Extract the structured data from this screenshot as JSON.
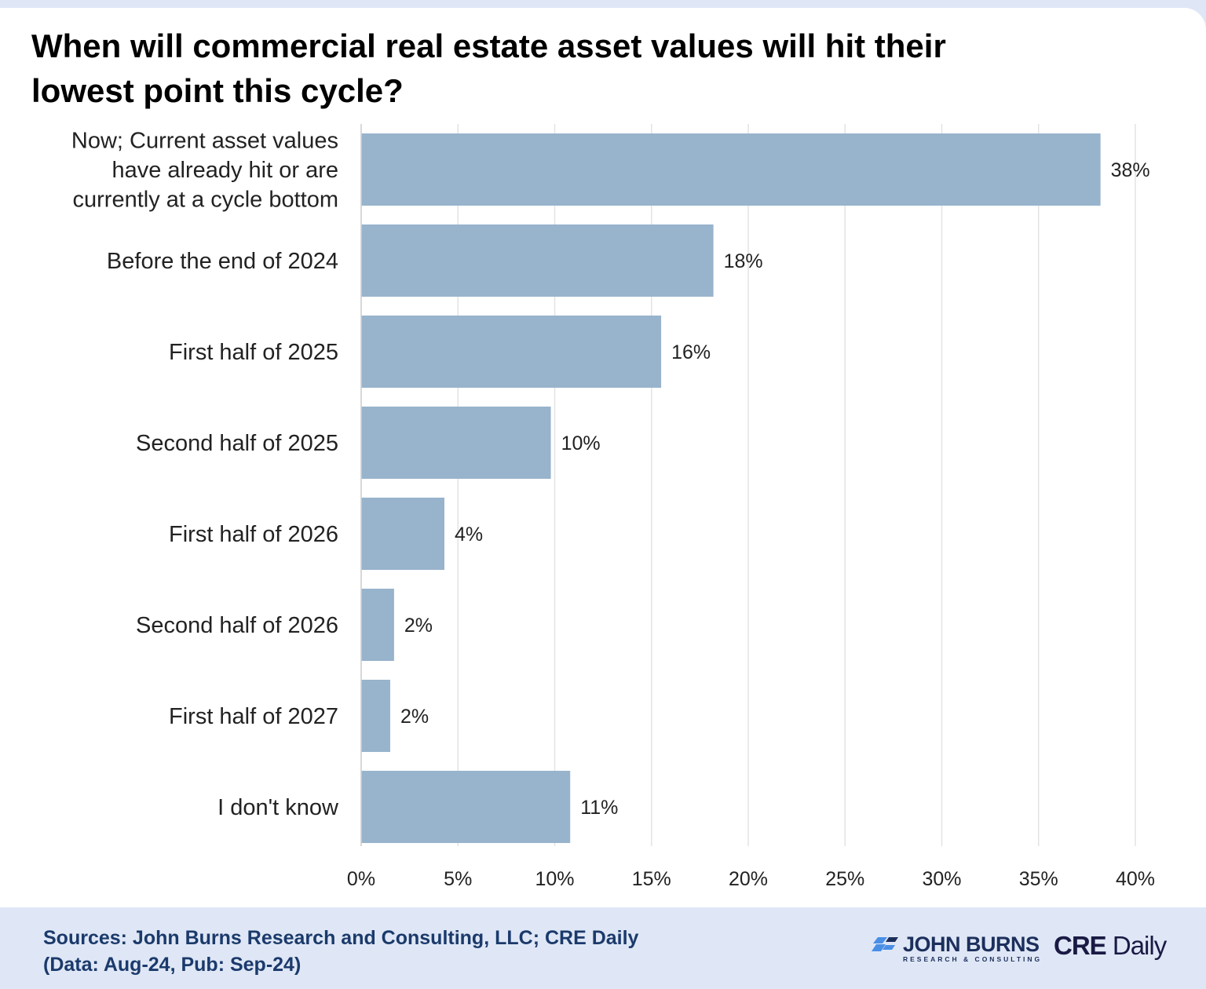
{
  "chart_data": {
    "type": "bar",
    "orientation": "horizontal",
    "title": "When will commercial real estate asset values will hit their lowest point this cycle?",
    "categories": [
      "Now; Current asset values have already hit or are currently at a cycle bottom",
      "Before the end of 2024",
      "First half of 2025",
      "Second half of 2025",
      "First half of 2026",
      "Second half of 2026",
      "First half of 2027",
      "I don't know"
    ],
    "category_lines": [
      [
        "Now; Current asset values",
        "have already hit or are",
        "currently at a cycle bottom"
      ],
      [
        "Before the end of 2024"
      ],
      [
        "First half of 2025"
      ],
      [
        "Second half of 2025"
      ],
      [
        "First half of 2026"
      ],
      [
        "Second half of 2026"
      ],
      [
        "First half of 2027"
      ],
      [
        "I don't know"
      ]
    ],
    "values": [
      38.2,
      18.2,
      15.5,
      9.8,
      4.3,
      1.7,
      1.5,
      10.8
    ],
    "data_labels": [
      "38%",
      "18%",
      "16%",
      "10%",
      "4%",
      "2%",
      "2%",
      "11%"
    ],
    "xlim": [
      0,
      40
    ],
    "xticks": [
      "0%",
      "5%",
      "10%",
      "15%",
      "20%",
      "25%",
      "30%",
      "35%",
      "40%"
    ],
    "grid": true,
    "legend": "none",
    "bar_color": "#98b3cc",
    "grid_color": "#e3e3e3"
  },
  "footer": {
    "source_line1": "Sources: John Burns Research and Consulting, LLC; CRE Daily",
    "source_line2": "(Data: Aug-24, Pub: Sep-24)",
    "logo_jb_name": "JOHN BURNS",
    "logo_jb_sub": "RESEARCH & CONSULTING",
    "logo_cre_bold": "CRE",
    "logo_cre_rest": "Daily"
  }
}
